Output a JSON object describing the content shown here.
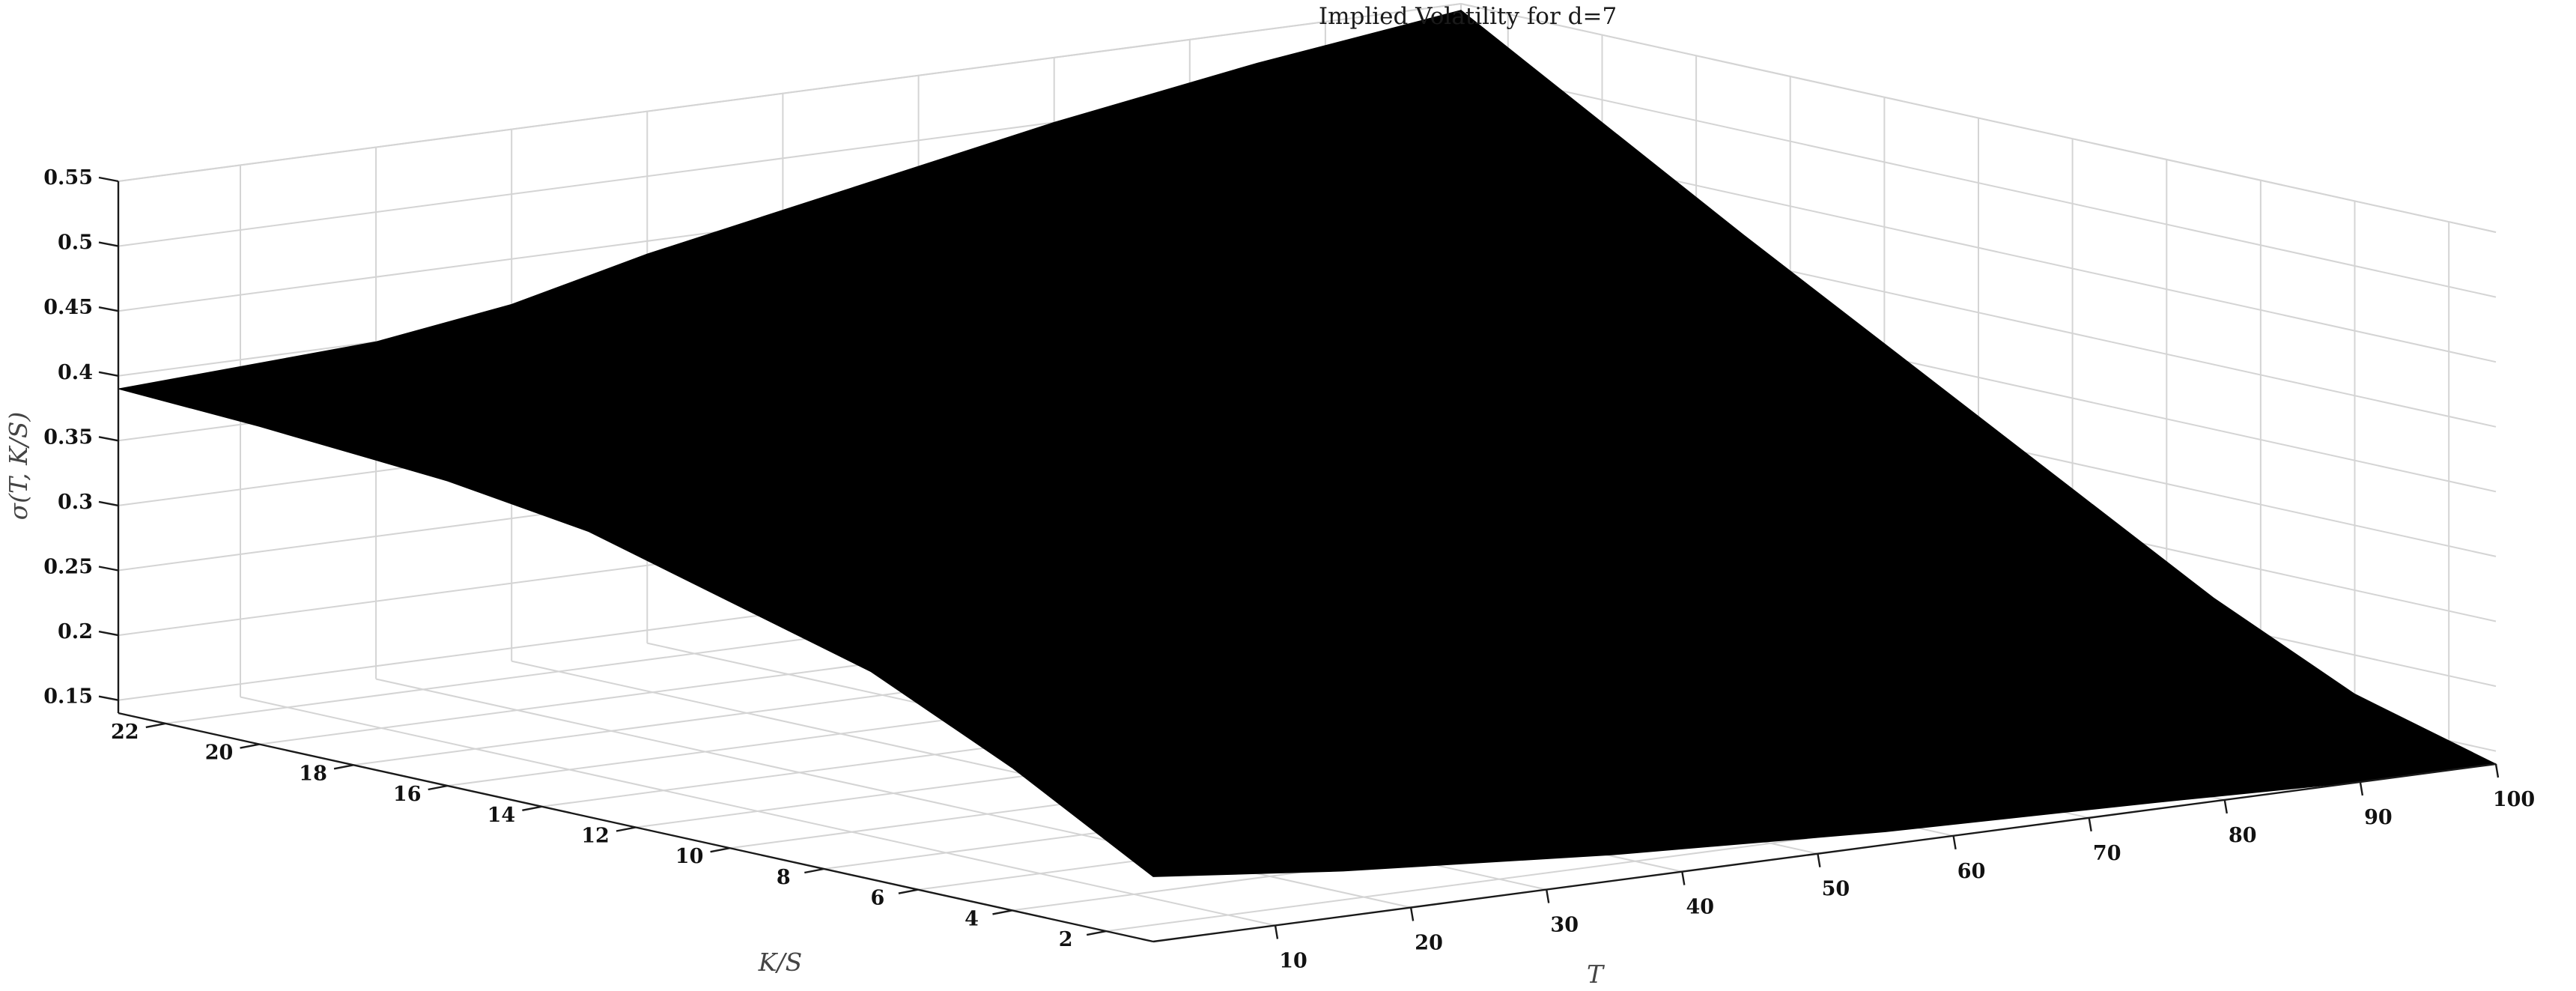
{
  "chart_data": {
    "type": "surface",
    "title": "Implied Volatility for d=7",
    "xlabel": "T",
    "ylabel": "K/S",
    "zlabel": "σ(T, K/S)",
    "x_ticks": [
      10,
      20,
      30,
      40,
      50,
      60,
      70,
      80,
      90,
      100
    ],
    "y_ticks": [
      2,
      4,
      6,
      8,
      10,
      12,
      14,
      16,
      18,
      20,
      22
    ],
    "z_ticks": [
      0.15,
      0.2,
      0.25,
      0.3,
      0.35,
      0.4,
      0.45,
      0.5,
      0.55
    ],
    "xlim": [
      1,
      100
    ],
    "ylim": [
      1,
      23
    ],
    "zlim": [
      0.14,
      0.55
    ],
    "grid": true,
    "surface_color": "#000000",
    "surface_outline": [
      {
        "T": 100,
        "K_S": 23,
        "sigma": 0.545
      },
      {
        "T": 100,
        "K_S": 17,
        "sigma": 0.42
      },
      {
        "T": 100,
        "K_S": 13,
        "sigma": 0.34
      },
      {
        "T": 100,
        "K_S": 10,
        "sigma": 0.28
      },
      {
        "T": 100,
        "K_S": 7,
        "sigma": 0.22
      },
      {
        "T": 100,
        "K_S": 4,
        "sigma": 0.17
      },
      {
        "T": 100,
        "K_S": 1,
        "sigma": 0.14
      },
      {
        "T": 90,
        "K_S": 1,
        "sigma": 0.14
      },
      {
        "T": 75,
        "K_S": 1,
        "sigma": 0.145
      },
      {
        "T": 55,
        "K_S": 1,
        "sigma": 0.15
      },
      {
        "T": 35,
        "K_S": 1,
        "sigma": 0.16
      },
      {
        "T": 15,
        "K_S": 1,
        "sigma": 0.175
      },
      {
        "T": 1,
        "K_S": 1,
        "sigma": 0.19
      },
      {
        "T": 1,
        "K_S": 4,
        "sigma": 0.25
      },
      {
        "T": 1,
        "K_S": 7,
        "sigma": 0.3
      },
      {
        "T": 1,
        "K_S": 10,
        "sigma": 0.33
      },
      {
        "T": 1,
        "K_S": 13,
        "sigma": 0.36
      },
      {
        "T": 1,
        "K_S": 16,
        "sigma": 0.375
      },
      {
        "T": 1,
        "K_S": 18,
        "sigma": 0.38
      },
      {
        "T": 1,
        "K_S": 20,
        "sigma": 0.385
      },
      {
        "T": 1,
        "K_S": 23,
        "sigma": 0.39
      },
      {
        "T": 20,
        "K_S": 23,
        "sigma": 0.4
      },
      {
        "T": 30,
        "K_S": 23,
        "sigma": 0.415
      },
      {
        "T": 40,
        "K_S": 23,
        "sigma": 0.44
      },
      {
        "T": 55,
        "K_S": 23,
        "sigma": 0.47
      },
      {
        "T": 70,
        "K_S": 23,
        "sigma": 0.5
      },
      {
        "T": 85,
        "K_S": 23,
        "sigma": 0.525
      },
      {
        "T": 100,
        "K_S": 23,
        "sigma": 0.545
      }
    ]
  }
}
